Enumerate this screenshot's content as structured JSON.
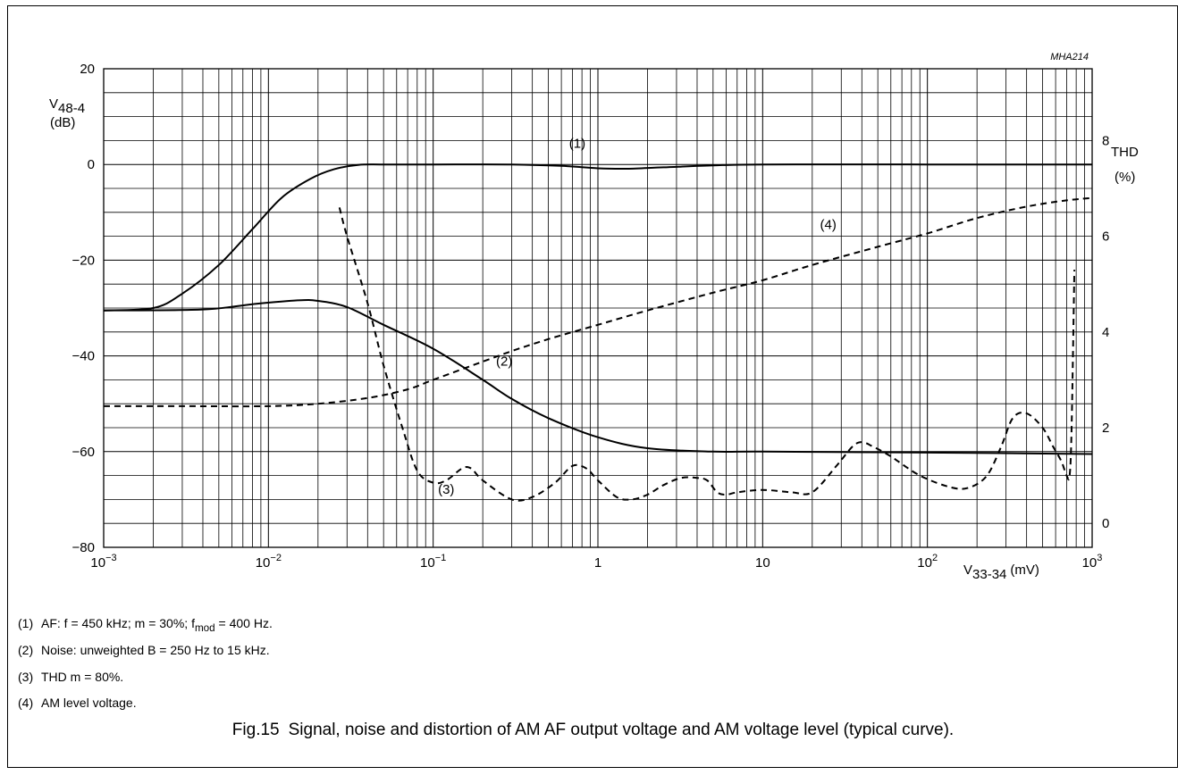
{
  "chart_data": {
    "type": "line",
    "figure_code": "MHA214",
    "x_axis": {
      "scale": "log",
      "range": [
        0.001,
        1000
      ],
      "ticks": [
        {
          "base": "10",
          "exp": "−3"
        },
        {
          "base": "10",
          "exp": "−2"
        },
        {
          "base": "10",
          "exp": "−1"
        },
        {
          "base": "1",
          "exp": ""
        },
        {
          "base": "10",
          "exp": ""
        },
        {
          "base": "10",
          "exp": "2"
        },
        {
          "base": "10",
          "exp": "3"
        }
      ],
      "label_main": "V",
      "label_sub": "33-34",
      "label_unit": "(mV)"
    },
    "y_left": {
      "range": [
        -80,
        20
      ],
      "ticks": [
        "20",
        "0",
        "−20",
        "−40",
        "−60",
        "−80"
      ],
      "tick_values": [
        20,
        0,
        -20,
        -40,
        -60,
        -80
      ],
      "label_main": "V",
      "label_sub": "48-4",
      "label_unit": "(dB)"
    },
    "y_right": {
      "range": [
        -0.5,
        9.5
      ],
      "ticks": [
        "8",
        "6",
        "4",
        "2",
        "0"
      ],
      "tick_values": [
        8,
        6,
        4,
        2,
        0
      ],
      "label_main": "THD",
      "label_unit": "(%)"
    },
    "grid": true,
    "series": [
      {
        "name": "(1)",
        "axis": "left",
        "style": "solid",
        "x": [
          0.001,
          0.002,
          0.003,
          0.005,
          0.008,
          0.012,
          0.018,
          0.025,
          0.035,
          0.05,
          0.1,
          0.3,
          0.6,
          1,
          1.5,
          2.5,
          5,
          10,
          100,
          1000
        ],
        "y": [
          -30.5,
          -30.0,
          -27,
          -21,
          -13.5,
          -7,
          -3,
          -1,
          -0.1,
          0,
          0,
          0,
          -0.3,
          -0.8,
          -0.9,
          -0.6,
          -0.2,
          0,
          0,
          0
        ]
      },
      {
        "name": "(2)",
        "axis": "left",
        "style": "solid",
        "x": [
          0.001,
          0.004,
          0.008,
          0.015,
          0.02,
          0.03,
          0.05,
          0.1,
          0.2,
          0.3,
          0.5,
          1,
          2,
          5,
          10,
          100,
          1000
        ],
        "y": [
          -30.5,
          -30.3,
          -29.2,
          -28.4,
          -28.5,
          -29.8,
          -33.5,
          -38.5,
          -45,
          -49,
          -53,
          -57,
          -59.3,
          -60,
          -60,
          -60.2,
          -60.5
        ]
      },
      {
        "name": "(3)",
        "axis": "right",
        "style": "dashed",
        "x": [
          0.027,
          0.03,
          0.04,
          0.05,
          0.065,
          0.08,
          0.1,
          0.12,
          0.15,
          0.17,
          0.2,
          0.3,
          0.4,
          0.55,
          0.7,
          0.85,
          1.0,
          1.3,
          1.6,
          2.0,
          2.5,
          3.2,
          4.0,
          4.6,
          5.3,
          6.0,
          7.0,
          10,
          15,
          20,
          28,
          35,
          40,
          47,
          60,
          90,
          140,
          180,
          230,
          280,
          330,
          400,
          500,
          580,
          650,
          700,
          730,
          750,
          780
        ],
        "y": [
          6.6,
          6.0,
          4.6,
          3.3,
          2.0,
          1.1,
          0.85,
          0.9,
          1.15,
          1.15,
          0.9,
          0.5,
          0.55,
          0.85,
          1.2,
          1.15,
          0.9,
          0.55,
          0.5,
          0.6,
          0.8,
          0.95,
          0.95,
          0.9,
          0.65,
          0.6,
          0.65,
          0.7,
          0.65,
          0.65,
          1.2,
          1.6,
          1.7,
          1.6,
          1.4,
          1.0,
          0.75,
          0.75,
          1.0,
          1.6,
          2.2,
          2.3,
          2.0,
          1.6,
          1.3,
          1.0,
          1.0,
          2.0,
          5.3
        ]
      },
      {
        "name": "(4)",
        "axis": "right",
        "style": "dashed",
        "x": [
          0.001,
          0.003,
          0.01,
          0.02,
          0.04,
          0.07,
          0.1,
          0.2,
          0.3,
          0.5,
          1,
          2,
          5,
          10,
          20,
          50,
          100,
          200,
          400,
          700,
          1000
        ],
        "y": [
          2.45,
          2.45,
          2.45,
          2.5,
          2.62,
          2.8,
          3.0,
          3.38,
          3.6,
          3.85,
          4.15,
          4.45,
          4.82,
          5.08,
          5.4,
          5.78,
          6.06,
          6.38,
          6.62,
          6.75,
          6.8
        ]
      }
    ]
  },
  "notes": [
    {
      "num": "(1)",
      "pre": "AF: f = 450 kHz; m = 30%; f",
      "sub": "mod",
      "post": " = 400 Hz."
    },
    {
      "num": "(2)",
      "pre": "Noise: unweighted B = 250 Hz to 15 kHz.",
      "sub": "",
      "post": ""
    },
    {
      "num": "(3)",
      "pre": "THD m = 80%.",
      "sub": "",
      "post": ""
    },
    {
      "num": "(4)",
      "pre": "AM level voltage.",
      "sub": "",
      "post": ""
    }
  ],
  "caption": {
    "fig": "Fig.15",
    "text": "Signal, noise and distortion of AM AF output voltage and AM voltage level (typical curve)."
  }
}
